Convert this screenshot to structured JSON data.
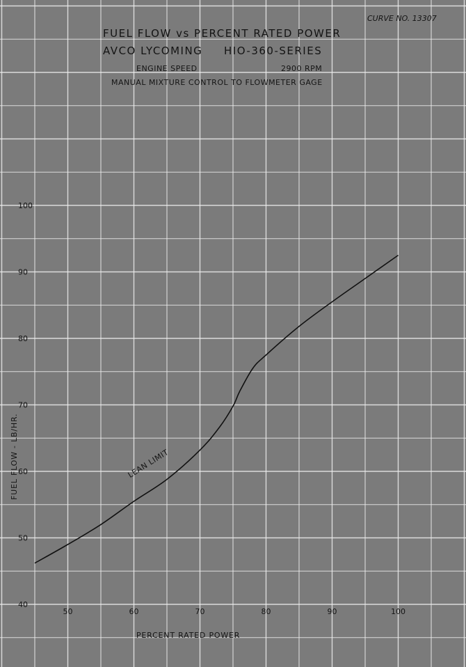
{
  "header": {
    "curve_no": "CURVE NO. 13307",
    "title_line1": "FUEL FLOW vs PERCENT RATED POWER",
    "title_line2_left": "AVCO LYCOMING",
    "title_line2_right": "HIO-360-SERIES",
    "speed_label": "ENGINE SPEED",
    "speed_value": "2900 RPM",
    "mixture_note": "MANUAL MIXTURE CONTROL TO FLOWMETER GAGE"
  },
  "chart_data": {
    "type": "line",
    "title": "FUEL FLOW vs PERCENT RATED POWER",
    "xlabel": "PERCENT RATED POWER",
    "ylabel": "FUEL FLOW - LB/HR.",
    "xlim": [
      45,
      105
    ],
    "ylim": [
      40,
      100
    ],
    "x_ticks": [
      50,
      60,
      70,
      80,
      90,
      100
    ],
    "y_ticks": [
      40,
      50,
      60,
      70,
      80,
      90,
      100
    ],
    "grid": true,
    "series": [
      {
        "x": [
          45,
          50,
          55,
          60,
          65,
          70,
          73,
          75,
          76,
          78,
          80,
          85,
          90,
          95,
          100
        ],
        "y": [
          46.2,
          49.0,
          52.0,
          55.5,
          58.8,
          63.2,
          66.7,
          69.8,
          72.0,
          75.5,
          77.5,
          81.8,
          85.5,
          89.0,
          92.5
        ]
      }
    ],
    "annotations": [
      {
        "text": "LEAN LIMIT",
        "x": 65,
        "y": 58.8
      }
    ]
  },
  "colors": {
    "background": "#7b7b7b",
    "grid": "#ececec",
    "ink": "#141414"
  }
}
